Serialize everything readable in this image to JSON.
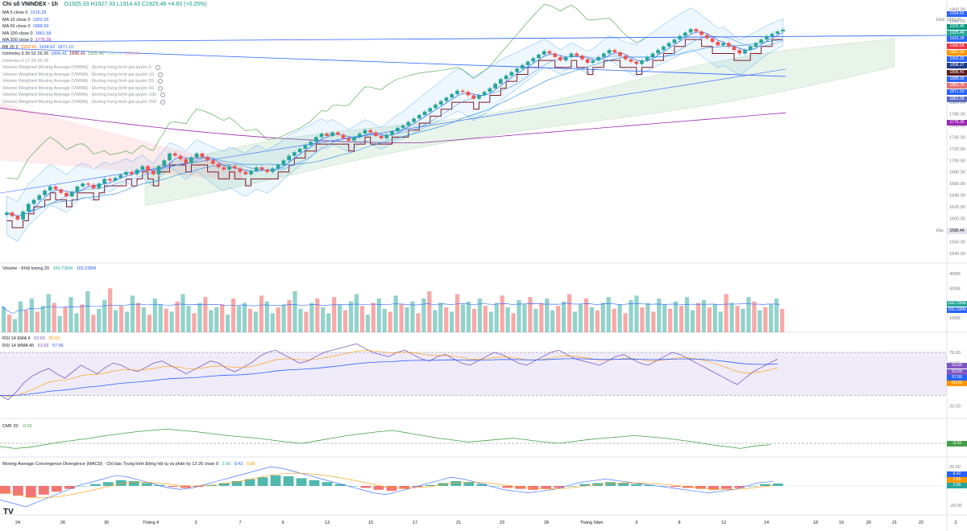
{
  "header": {
    "title": "Chỉ số VNINDEX · 1h",
    "ohlc": [
      "O1925.33",
      "H1927.33",
      "L1914.43",
      "C1925.46",
      "+4.83 (+0.25%)"
    ]
  },
  "legends": {
    "main": [
      {
        "label": "MA 5 close 0",
        "value": "1916.28",
        "color": "#2962ff"
      },
      {
        "label": "MA 10 close 0",
        "value": "1902.39",
        "color": "#2962ff"
      },
      {
        "label": "MA 50 close 0",
        "value": "1888.99",
        "color": "#2962ff"
      },
      {
        "label": "MA 100 close 0",
        "value": "1861.58",
        "color": "#2962ff"
      },
      {
        "label": "MA 200 close 0",
        "value": "1776.35",
        "color": "#9c27b0"
      }
    ],
    "bb": {
      "label": "BB 20 2",
      "values": [
        "1902.90",
        "1934.62",
        "1871.10"
      ]
    },
    "ichimoku": {
      "label": "Ichimoku 9 26 52 26 26",
      "values": [
        "1896.41",
        "1896.41",
        "1925.46",
        "1930.11",
        "1902.26"
      ]
    },
    "ichimoku2": {
      "label": "Ichimoku 9 17 26 26 26",
      "values": []
    },
    "vwma": [
      "Volume Weighted Moving Average (VWMA) · Đường trung bình gia quyền 5",
      "Volume Weighted Moving Average (VWMA) · Đường trung bình gia quyền 10",
      "Volume Weighted Moving Average (VWMA) · Đường trung bình gia quyền 20",
      "Volume Weighted Moving Average (VWMA) · Đường trung bình gia quyền 50",
      "Volume Weighted Moving Average (VWMA) · Đường trung bình gia quyền 100",
      "Volume Weighted Moving Average (VWMA) · Đường trung bình gia quyền 200"
    ],
    "volume": {
      "label": "Volume · Khối lượng 20",
      "values": [
        "160.736M",
        "165.238M"
      ]
    },
    "rsi1": {
      "label": "RSI 14 EMA 9",
      "values": [
        "63.69",
        "56.09"
      ]
    },
    "rsi2": {
      "label": "RSI 14 WMA 45",
      "values": [
        "63.69",
        "57.06"
      ]
    },
    "cmf": {
      "label": "CMF 20",
      "values": [
        "-0.02"
      ]
    },
    "macd": {
      "label": "Moving Average Convergence Divergence (MACD) · Chỉ báo Trung bình Động hội tụ và phân kỳ 12 26 close 9",
      "values": [
        "2.56",
        "8.42",
        "5.86"
      ]
    }
  },
  "price_tags": [
    {
      "text": "1934.62",
      "color": "#2962ff"
    },
    {
      "text": "1927.70",
      "plain": true
    },
    {
      "text": "1925.46",
      "color": "#089981"
    },
    {
      "text": "1925.46",
      "color": "#26a69a"
    },
    {
      "text": "1916.28",
      "color": "#2962ff"
    },
    {
      "text": "1906.58",
      "color": "#f23645"
    },
    {
      "text": "1902.90",
      "color": "#ff9800"
    },
    {
      "text": "1902.39",
      "color": "#2962ff"
    },
    {
      "text": "1898.27",
      "color": "#1e3a8a"
    },
    {
      "text": "1896.41",
      "color": "#5d1f1f"
    },
    {
      "text": "1888.99",
      "color": "#2962ff"
    },
    {
      "text": "1881.76",
      "color": "#e57373"
    },
    {
      "text": "1871.10",
      "color": "#2962ff"
    },
    {
      "text": "1861.58",
      "color": "#5c6bc0"
    },
    {
      "text": "1776.35",
      "color": "#9c27b0"
    }
  ],
  "side_labels": {
    "high": "Đỉnh",
    "low": "Đáy",
    "low_value": "1586.44"
  },
  "axis_sub_tags": {
    "volume": [
      "160.736M",
      "165.238M"
    ],
    "rsi": [
      "63.69",
      "63.69",
      "57.06",
      "56.09"
    ],
    "cmf": [
      "-0.02"
    ],
    "macd": [
      "8.42",
      "5.86",
      "2.56"
    ]
  },
  "chart_data": {
    "type": "candlestick",
    "symbol": "VNINDEX",
    "interval": "1h",
    "price_axis": {
      "ticks": [
        1540,
        1560,
        1580,
        1600,
        1620,
        1640,
        1660,
        1680,
        1700,
        1720,
        1740,
        1760,
        1780,
        1800,
        1820,
        1840,
        1860,
        1880,
        1900,
        1920,
        1940,
        1960
      ],
      "ylim": [
        1530,
        1965
      ]
    },
    "time_axis": {
      "labels": [
        "24",
        "26",
        "30",
        "Tháng 4",
        "3",
        "7",
        "9",
        "13",
        "15",
        "17",
        "21",
        "23",
        "28",
        "Tháng Năm",
        "6",
        "8",
        "12",
        "14",
        "18",
        "19",
        "20",
        "21",
        "22",
        "2"
      ]
    },
    "closes": [
      1610,
      1604,
      1598,
      1612,
      1625,
      1632,
      1640,
      1648,
      1655,
      1650,
      1644,
      1638,
      1646,
      1655,
      1660,
      1658,
      1652,
      1660,
      1668,
      1665,
      1670,
      1675,
      1680,
      1676,
      1684,
      1690,
      1682,
      1676,
      1690,
      1700,
      1712,
      1708,
      1702,
      1695,
      1705,
      1712,
      1706,
      1700,
      1694,
      1688,
      1684,
      1690,
      1686,
      1680,
      1676,
      1682,
      1688,
      1684,
      1680,
      1686,
      1692,
      1700,
      1708,
      1714,
      1720,
      1726,
      1732,
      1740,
      1746,
      1742,
      1748,
      1744,
      1738,
      1734,
      1740,
      1746,
      1752,
      1748,
      1742,
      1738,
      1744,
      1750,
      1756,
      1760,
      1766,
      1772,
      1778,
      1784,
      1790,
      1796,
      1802,
      1808,
      1814,
      1820,
      1818,
      1812,
      1806,
      1812,
      1818,
      1824,
      1832,
      1840,
      1846,
      1852,
      1858,
      1864,
      1870,
      1876,
      1882,
      1888,
      1884,
      1878,
      1872,
      1878,
      1884,
      1880,
      1874,
      1868,
      1872,
      1878,
      1884,
      1890,
      1886,
      1880,
      1874,
      1870,
      1866,
      1872,
      1878,
      1884,
      1890,
      1896,
      1902,
      1908,
      1914,
      1920,
      1926,
      1922,
      1916,
      1910,
      1904,
      1898,
      1902,
      1896,
      1890,
      1884,
      1890,
      1896,
      1902,
      1908,
      1914,
      1918,
      1922,
      1925
    ],
    "volume_axis": {
      "ticks": [
        "100M",
        "200M",
        "300M",
        "400M"
      ],
      "range": [
        0,
        400
      ]
    },
    "volumes": [
      175,
      120,
      90,
      210,
      150,
      230,
      140,
      180,
      260,
      200,
      110,
      170,
      240,
      130,
      190,
      280,
      120,
      160,
      220,
      300,
      150,
      180,
      140,
      250,
      200,
      170,
      120,
      230,
      190,
      160,
      140,
      210,
      260,
      180,
      130,
      200,
      240,
      150,
      170,
      190,
      120,
      230,
      180,
      200,
      160,
      140,
      250,
      210,
      130,
      170,
      190,
      220,
      280,
      160,
      140,
      200,
      230,
      170,
      130,
      240,
      190,
      150,
      210,
      260,
      180,
      120,
      200,
      230,
      160,
      140,
      250,
      190,
      170,
      210,
      130,
      230,
      280,
      150,
      200,
      170,
      140,
      260,
      190,
      210,
      160,
      230,
      180,
      140,
      200,
      250,
      170,
      130,
      220,
      190,
      240,
      160,
      200,
      230,
      150,
      180,
      210,
      260,
      140,
      190,
      230,
      170,
      150,
      200,
      240,
      160,
      190,
      130,
      220,
      250,
      170,
      200,
      140,
      230,
      190,
      160,
      210,
      180,
      240,
      150,
      200,
      220,
      170,
      190,
      140,
      260,
      200,
      180,
      160,
      240,
      210,
      150,
      170,
      190,
      230,
      160
    ],
    "rsi_axis": {
      "ticks": [
        20,
        40,
        60,
        70
      ],
      "band": [
        30,
        70
      ]
    },
    "rsi": [
      30,
      26,
      33,
      42,
      48,
      52,
      55,
      50,
      46,
      52,
      58,
      54,
      50,
      56,
      60,
      58,
      54,
      52,
      56,
      60,
      62,
      58,
      54,
      50,
      54,
      58,
      62,
      60,
      55,
      52,
      56,
      60,
      66,
      70,
      72,
      68,
      64,
      60,
      62,
      66,
      70,
      72,
      74,
      76,
      78,
      74,
      70,
      68,
      66,
      70,
      72,
      68,
      64,
      62,
      66,
      68,
      64,
      60,
      58,
      62,
      66,
      70,
      68,
      64,
      60,
      58,
      62,
      66,
      70,
      72,
      68,
      64,
      62,
      60,
      58,
      62,
      66,
      68,
      64,
      60,
      58,
      62,
      66,
      70,
      68,
      64,
      60,
      56,
      52,
      48,
      44,
      40,
      46,
      52,
      56,
      60,
      63.69
    ],
    "cmf_axis": {
      "zero": 0
    },
    "cmf": [
      -0.05,
      -0.08,
      -0.06,
      -0.02,
      0.02,
      0.05,
      0.08,
      0.12,
      0.15,
      0.18,
      0.2,
      0.22,
      0.2,
      0.18,
      0.15,
      0.12,
      0.1,
      0.08,
      0.05,
      0.02,
      0.0,
      0.04,
      0.08,
      0.12,
      0.15,
      0.18,
      0.2,
      0.16,
      0.12,
      0.08,
      0.05,
      0.02,
      0.04,
      0.06,
      0.08,
      0.05,
      0.02,
      0.0,
      0.03,
      0.06,
      0.08,
      0.1,
      0.12,
      0.1,
      0.08,
      0.05,
      0.02,
      -0.02,
      -0.05,
      -0.08,
      -0.04,
      -0.02
    ],
    "macd_axis": {
      "ticks": [
        -20,
        0,
        20
      ]
    },
    "macd_hist": [
      -8,
      -10,
      -12,
      -9,
      -6,
      -3,
      0,
      2,
      4,
      6,
      5,
      3,
      1,
      -1,
      -2,
      -1,
      1,
      3,
      5,
      7,
      9,
      11,
      10,
      8,
      6,
      4,
      2,
      0,
      -2,
      -4,
      -5,
      -3,
      -1,
      1,
      3,
      5,
      4,
      2,
      0,
      -2,
      -3,
      -4,
      -3,
      -2,
      0,
      2,
      3,
      4,
      3,
      2,
      1,
      0,
      -1,
      -2,
      -3,
      -4,
      -3,
      -2,
      0,
      2,
      2.56
    ]
  }
}
